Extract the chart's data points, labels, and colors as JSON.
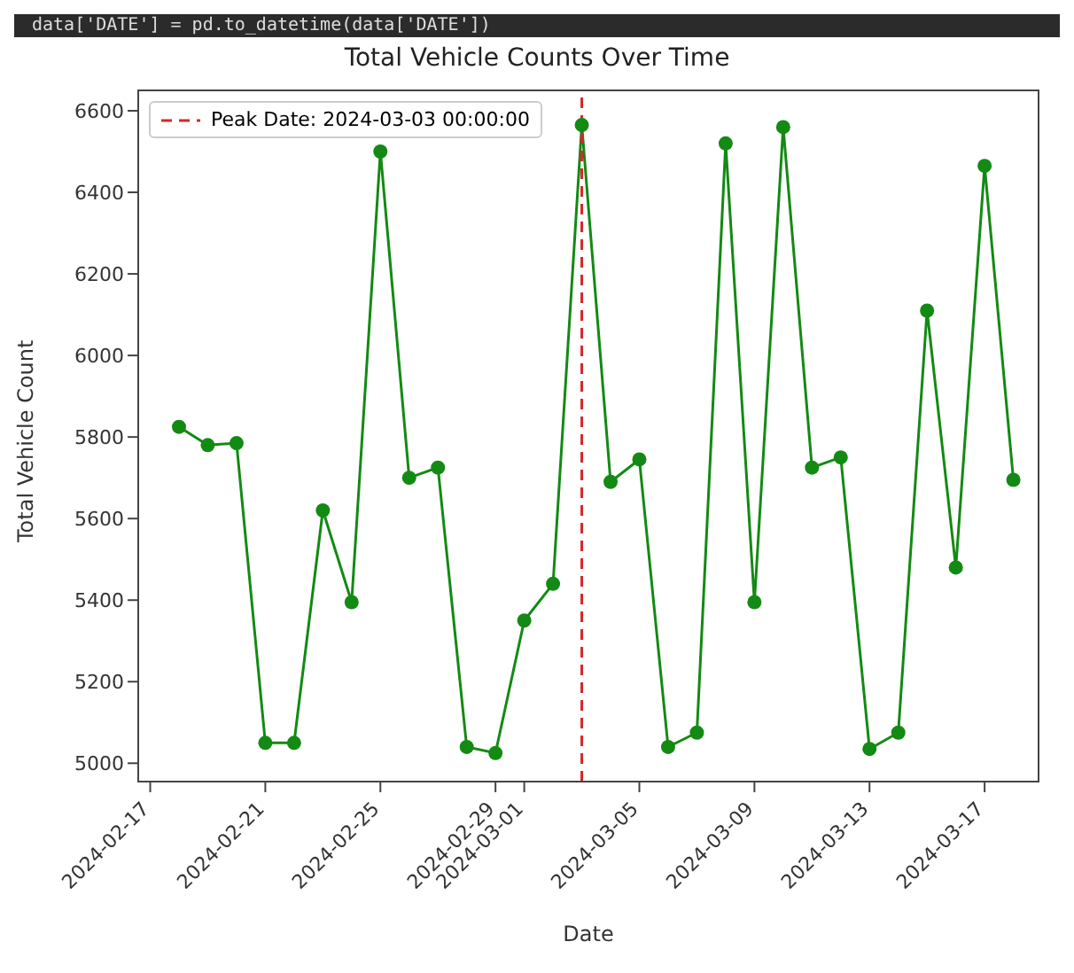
{
  "chart_data": {
    "type": "line",
    "title": "Total Vehicle Counts Over Time",
    "xlabel": "Date",
    "ylabel": "Total Vehicle Count",
    "annotations": [
      "data['DATE'] = pd.to_datetime(data['DATE'])"
    ],
    "x": [
      "2024-02-18",
      "2024-02-19",
      "2024-02-20",
      "2024-02-21",
      "2024-02-22",
      "2024-02-23",
      "2024-02-24",
      "2024-02-25",
      "2024-02-26",
      "2024-02-27",
      "2024-02-28",
      "2024-02-29",
      "2024-03-01",
      "2024-03-02",
      "2024-03-03",
      "2024-03-04",
      "2024-03-05",
      "2024-03-06",
      "2024-03-07",
      "2024-03-08",
      "2024-03-09",
      "2024-03-10",
      "2024-03-11",
      "2024-03-12",
      "2024-03-13",
      "2024-03-14",
      "2024-03-15",
      "2024-03-16",
      "2024-03-17",
      "2024-03-18"
    ],
    "series": [
      {
        "color": "#138a13",
        "values": [
          5825,
          5780,
          5785,
          5050,
          5050,
          5620,
          5395,
          6500,
          5700,
          5725,
          5040,
          5025,
          5350,
          5440,
          6565,
          5690,
          5745,
          5040,
          5075,
          6520,
          5395,
          6560,
          5725,
          5750,
          5035,
          5075,
          6110,
          5480,
          6465,
          5695
        ]
      }
    ],
    "xlim": [
      "2024-02-16T14:00",
      "2024-03-18T21:00"
    ],
    "xticks": [
      "2024-02-17",
      "2024-02-21",
      "2024-02-25",
      "2024-02-29",
      "2024-03-01",
      "2024-03-05",
      "2024-03-09",
      "2024-03-13",
      "2024-03-17"
    ],
    "ylim": [
      4955,
      6650
    ],
    "yticks": [
      5000,
      5200,
      5400,
      5600,
      5800,
      6000,
      6200,
      6400,
      6600
    ],
    "ref_lines": [
      {
        "axis": "x",
        "value": "2024-03-03",
        "label": "Peak Date: 2024-03-03 00:00:00",
        "color": "#d62728",
        "line_style": "dashed"
      }
    ],
    "marker": "circle",
    "line_style": "solid",
    "grid": false,
    "legend": "top left"
  }
}
